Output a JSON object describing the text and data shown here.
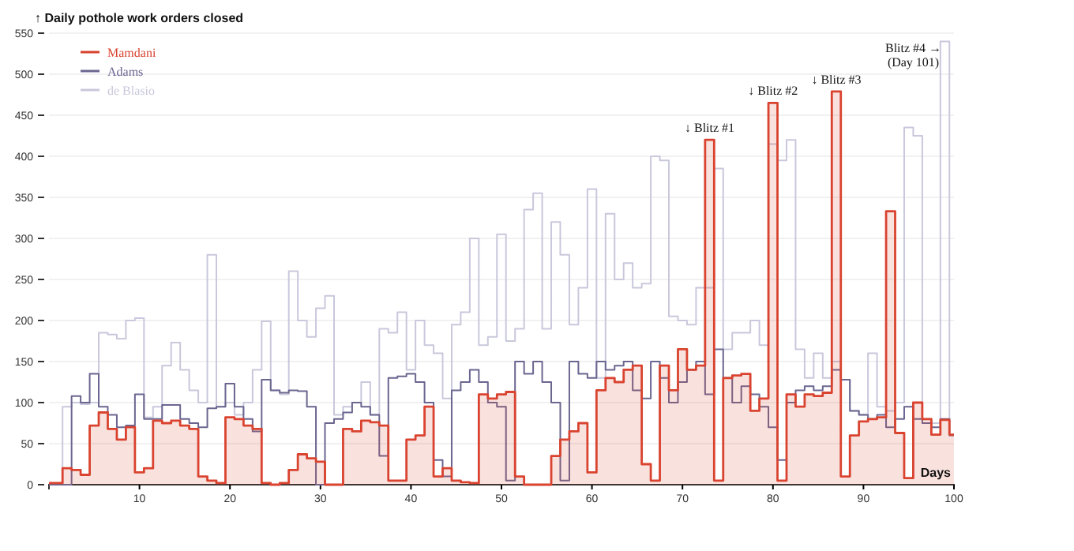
{
  "chart_data": {
    "type": "step",
    "title": "↑ Daily pothole work orders closed",
    "xlabel": "Days",
    "x": [
      0,
      1,
      2,
      3,
      4,
      5,
      6,
      7,
      8,
      9,
      10,
      11,
      12,
      13,
      14,
      15,
      16,
      17,
      18,
      19,
      20,
      21,
      22,
      23,
      24,
      25,
      26,
      27,
      28,
      29,
      30,
      31,
      32,
      33,
      34,
      35,
      36,
      37,
      38,
      39,
      40,
      41,
      42,
      43,
      44,
      45,
      46,
      47,
      48,
      49,
      50,
      51,
      52,
      53,
      54,
      55,
      56,
      57,
      58,
      59,
      60,
      61,
      62,
      63,
      64,
      65,
      66,
      67,
      68,
      69,
      70,
      71,
      72,
      73,
      74,
      75,
      76,
      77,
      78,
      79,
      80,
      81,
      82,
      83,
      84,
      85,
      86,
      87,
      88,
      89,
      90,
      91,
      92,
      93,
      94,
      95,
      96,
      97,
      98,
      99,
      100
    ],
    "series": [
      {
        "name": "de Blasio",
        "color": "#c9c8dc",
        "values": [
          0,
          0,
          95,
          100,
          98,
          100,
          185,
          183,
          178,
          200,
          203,
          82,
          95,
          145,
          173,
          140,
          115,
          100,
          280,
          95,
          100,
          85,
          100,
          140,
          199,
          115,
          110,
          260,
          200,
          180,
          215,
          230,
          85,
          95,
          100,
          125,
          85,
          190,
          185,
          210,
          140,
          200,
          170,
          160,
          105,
          195,
          210,
          300,
          170,
          180,
          305,
          175,
          190,
          335,
          355,
          190,
          320,
          280,
          195,
          240,
          360,
          130,
          330,
          250,
          270,
          240,
          245,
          400,
          395,
          205,
          200,
          195,
          240,
          240,
          385,
          165,
          185,
          185,
          200,
          170,
          415,
          395,
          420,
          165,
          130,
          160,
          130,
          150,
          128,
          90,
          85,
          160,
          95,
          90,
          100,
          435,
          425,
          80,
          75,
          540,
          60
        ]
      },
      {
        "name": "Adams",
        "color": "#6a6690",
        "values": [
          0,
          0,
          0,
          108,
          100,
          135,
          95,
          85,
          70,
          72,
          110,
          80,
          80,
          97,
          97,
          80,
          75,
          70,
          93,
          95,
          123,
          95,
          80,
          65,
          128,
          115,
          112,
          115,
          114,
          95,
          0,
          75,
          80,
          88,
          100,
          95,
          85,
          35,
          130,
          132,
          135,
          125,
          100,
          30,
          10,
          115,
          125,
          140,
          125,
          100,
          95,
          5,
          150,
          135,
          150,
          125,
          100,
          5,
          150,
          135,
          130,
          150,
          140,
          145,
          150,
          115,
          105,
          150,
          130,
          100,
          125,
          140,
          150,
          110,
          165,
          130,
          100,
          120,
          110,
          95,
          70,
          30,
          100,
          115,
          120,
          115,
          120,
          140,
          128,
          90,
          85,
          80,
          85,
          70,
          80,
          95,
          80,
          75,
          70,
          80,
          60
        ]
      },
      {
        "name": "Mamdani",
        "type": "area",
        "color": "#d9432f",
        "values": [
          2,
          2,
          20,
          18,
          12,
          72,
          88,
          68,
          55,
          70,
          15,
          20,
          78,
          75,
          78,
          72,
          68,
          10,
          5,
          2,
          82,
          80,
          72,
          68,
          2,
          0,
          2,
          18,
          37,
          32,
          28,
          0,
          0,
          68,
          65,
          78,
          76,
          72,
          5,
          5,
          55,
          60,
          95,
          10,
          20,
          5,
          3,
          2,
          110,
          105,
          110,
          113,
          10,
          0,
          0,
          0,
          35,
          55,
          65,
          75,
          15,
          115,
          130,
          125,
          140,
          145,
          25,
          5,
          145,
          115,
          165,
          140,
          145,
          420,
          5,
          130,
          133,
          135,
          90,
          105,
          465,
          5,
          110,
          95,
          110,
          108,
          112,
          479,
          10,
          60,
          77,
          80,
          82,
          333,
          63,
          8,
          100,
          80,
          61,
          79,
          61
        ]
      }
    ],
    "xlim": [
      0,
      100
    ],
    "xticks": [
      10,
      20,
      30,
      40,
      50,
      60,
      70,
      80,
      90,
      100
    ],
    "ylim": [
      0,
      550
    ],
    "yticks": [
      0,
      50,
      100,
      150,
      200,
      250,
      300,
      350,
      400,
      450,
      500,
      550
    ],
    "grid": "y",
    "legend": "top left",
    "annotations": [
      {
        "text": "↓ Blitz #1",
        "x": 73,
        "y": 420
      },
      {
        "text": "↓ Blitz #2",
        "x": 80,
        "y": 465
      },
      {
        "text": "↓ Blitz #3",
        "x": 87,
        "y": 479
      },
      {
        "text": "Blitz #4 →\n(Day 101)",
        "x": 99,
        "y": 540
      }
    ]
  }
}
